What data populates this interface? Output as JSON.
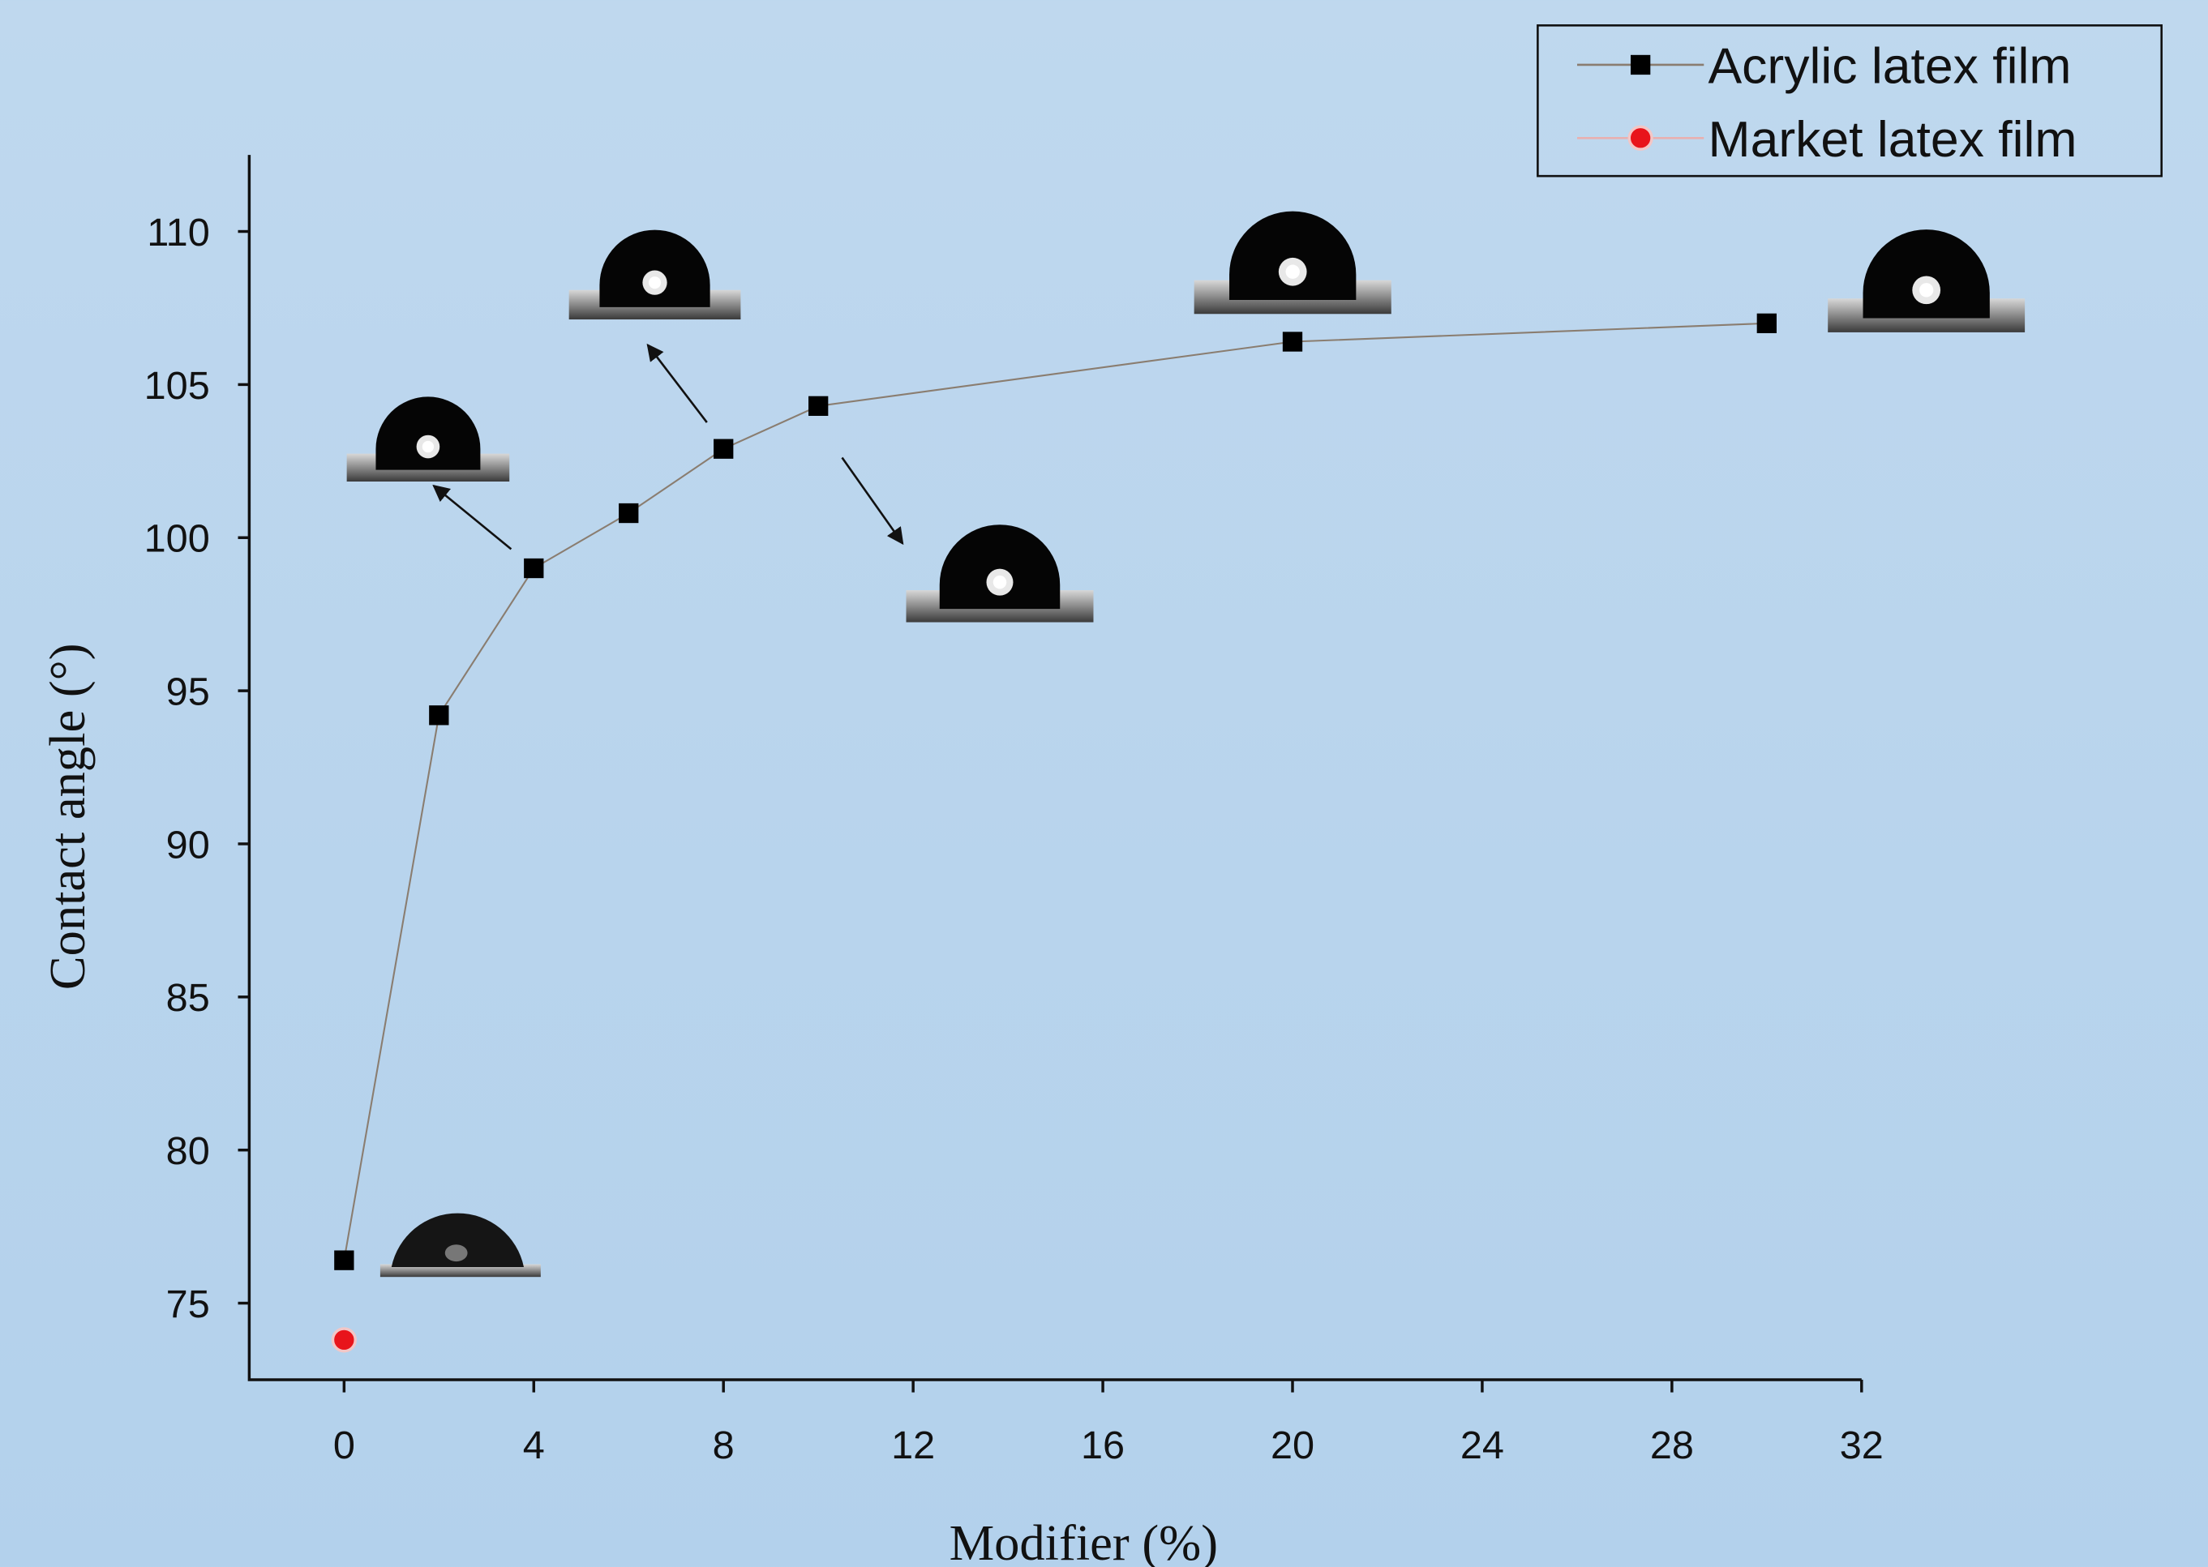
{
  "chart_data": {
    "type": "line",
    "xlabel": "Modifier (%)",
    "ylabel": "Contact angle (°)",
    "xlim": [
      -2,
      32
    ],
    "xticks": [
      0,
      4,
      8,
      12,
      16,
      20,
      24,
      28,
      32
    ],
    "ylim": [
      72.5,
      112.5
    ],
    "yticks": [
      75,
      80,
      85,
      90,
      95,
      100,
      105,
      110
    ],
    "legend": "upper right",
    "series": [
      {
        "name": "Acrylic latex film",
        "color": "#000000",
        "marker": "square",
        "x": [
          0,
          2,
          4,
          6,
          8,
          10,
          20,
          30
        ],
        "values": [
          76.4,
          94.2,
          99.0,
          100.8,
          102.9,
          104.3,
          106.4,
          107.0
        ]
      },
      {
        "name": "Market latex film",
        "color": "#e8141b",
        "marker": "circle",
        "x": [
          0
        ],
        "values": [
          73.8
        ]
      }
    ]
  }
}
